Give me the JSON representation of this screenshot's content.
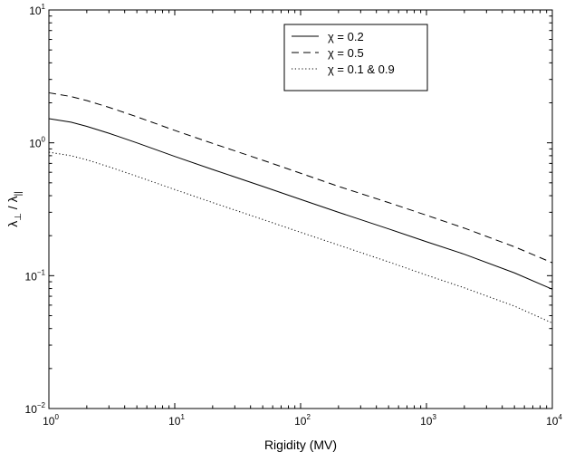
{
  "chart_data": {
    "type": "line",
    "xscale": "log",
    "yscale": "log",
    "xlim": [
      1,
      10000
    ],
    "ylim": [
      0.01,
      10
    ],
    "xlabel": "Rigidity (MV)",
    "ylabel": {
      "lambda": "λ",
      "perp": "⊥",
      "slash": " / ",
      "par": "||"
    },
    "xticks": [
      {
        "base": "10",
        "exp": "0",
        "value": 1
      },
      {
        "base": "10",
        "exp": "1",
        "value": 10
      },
      {
        "base": "10",
        "exp": "2",
        "value": 100
      },
      {
        "base": "10",
        "exp": "3",
        "value": 1000
      },
      {
        "base": "10",
        "exp": "4",
        "value": 10000
      }
    ],
    "yticks": [
      {
        "base": "10",
        "exp": "−2",
        "value": 0.01
      },
      {
        "base": "10",
        "exp": "−1",
        "value": 0.1
      },
      {
        "base": "10",
        "exp": "0",
        "value": 1
      },
      {
        "base": "10",
        "exp": "1",
        "value": 10
      }
    ],
    "grid": false,
    "legend_position": "top-right",
    "series": [
      {
        "name": "χ = 0.2",
        "style": "solid",
        "color": "#000000",
        "x": [
          1,
          1.5,
          2,
          3,
          5,
          10,
          20,
          50,
          100,
          200,
          500,
          1000,
          2000,
          5000,
          10000
        ],
        "y": [
          1.52,
          1.43,
          1.33,
          1.18,
          1.0,
          0.79,
          0.63,
          0.47,
          0.375,
          0.3,
          0.225,
          0.18,
          0.145,
          0.105,
          0.079
        ]
      },
      {
        "name": "χ = 0.5",
        "style": "dashed",
        "color": "#000000",
        "x": [
          1,
          1.5,
          2,
          3,
          5,
          10,
          20,
          50,
          100,
          200,
          500,
          1000,
          2000,
          5000,
          10000
        ],
        "y": [
          2.38,
          2.23,
          2.08,
          1.85,
          1.57,
          1.24,
          0.99,
          0.74,
          0.59,
          0.47,
          0.355,
          0.285,
          0.228,
          0.165,
          0.125
        ]
      },
      {
        "name": "χ = 0.1 & 0.9",
        "style": "dotted",
        "color": "#000000",
        "x": [
          1,
          1.5,
          2,
          3,
          5,
          10,
          20,
          50,
          100,
          200,
          500,
          1000,
          2000,
          5000,
          10000
        ],
        "y": [
          0.85,
          0.8,
          0.745,
          0.66,
          0.56,
          0.445,
          0.355,
          0.265,
          0.212,
          0.17,
          0.127,
          0.101,
          0.081,
          0.059,
          0.044
        ]
      }
    ]
  }
}
